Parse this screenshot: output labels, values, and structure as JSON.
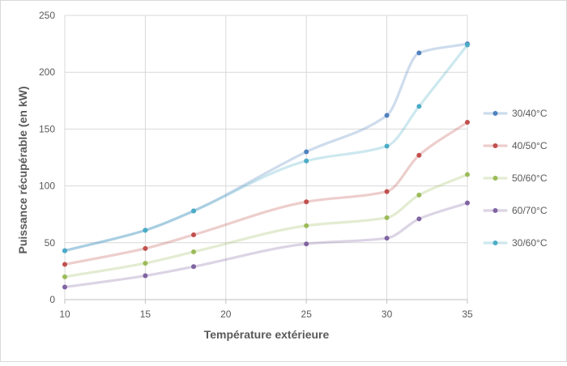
{
  "chart_data": {
    "type": "line",
    "title": "",
    "xlabel": "Température extérieure",
    "ylabel": "Puissance récupérable (en kW)",
    "xlim": [
      10,
      35
    ],
    "ylim": [
      0,
      250
    ],
    "xticks": [
      10,
      15,
      20,
      25,
      30,
      35
    ],
    "yticks": [
      0,
      50,
      100,
      150,
      200,
      250
    ],
    "grid": true,
    "legend_position": "right",
    "x": [
      10,
      15,
      18,
      25,
      30,
      32,
      35
    ],
    "series": [
      {
        "name": "30/40°C",
        "color": "#4f81bd",
        "values": [
          43,
          61,
          78,
          130,
          162,
          217,
          225
        ]
      },
      {
        "name": "40/50°C",
        "color": "#c0504d",
        "values": [
          31,
          45,
          57,
          86,
          95,
          127,
          156
        ]
      },
      {
        "name": "50/60°C",
        "color": "#9bbb59",
        "values": [
          20,
          32,
          42,
          65,
          72,
          92,
          110
        ]
      },
      {
        "name": "60/70°C",
        "color": "#8064a2",
        "values": [
          11,
          21,
          29,
          49,
          54,
          71,
          85
        ]
      },
      {
        "name": "30/60°C",
        "color": "#4bacc6",
        "values": [
          43,
          61,
          78,
          122,
          135,
          170,
          224
        ]
      }
    ]
  }
}
